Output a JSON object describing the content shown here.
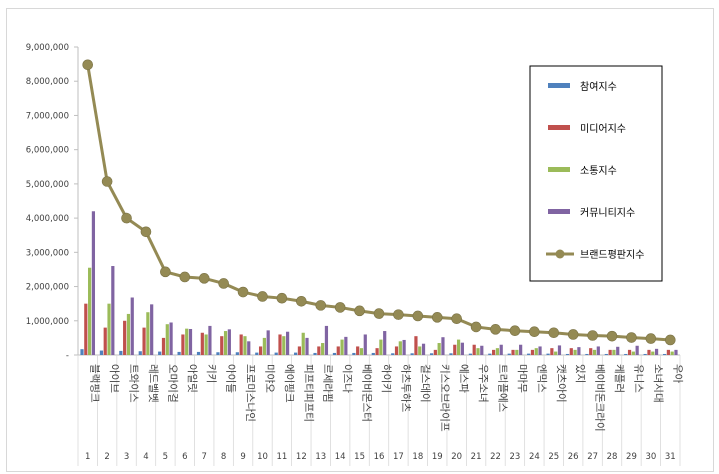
{
  "chart_data": {
    "type": "bar",
    "categories": [
      "블랙핑크",
      "아이브",
      "트와이스",
      "레드벨벳",
      "오마이걸",
      "아일릿",
      "키키",
      "아이들",
      "프로미스나인",
      "미야오",
      "에이핑크",
      "피프티피프티",
      "르세라핌",
      "이즈나",
      "베이비몬스터",
      "하이키",
      "하츠투하츠",
      "걸스데이",
      "키스오브라이프",
      "에스파",
      "우주소녀",
      "트리플에스",
      "마마무",
      "엔믹스",
      "캣츠아이",
      "있지",
      "베이비돈크라이",
      "케플러",
      "유니스",
      "소녀시대",
      "우아"
    ],
    "index_labels": [
      "1",
      "2",
      "3",
      "4",
      "5",
      "6",
      "7",
      "8",
      "9",
      "10",
      "11",
      "12",
      "13",
      "14",
      "15",
      "16",
      "17",
      "18",
      "19",
      "20",
      "21",
      "22",
      "23",
      "24",
      "25",
      "26",
      "27",
      "28",
      "29",
      "30",
      "31"
    ],
    "ylim": [
      0,
      9000000
    ],
    "yticks": [
      "-",
      "1,000,000",
      "2,000,000",
      "3,000,000",
      "4,000,000",
      "5,000,000",
      "6,000,000",
      "7,000,000",
      "8,000,000",
      "9,000,000"
    ],
    "grid": false,
    "legend_position": "top-right",
    "series": [
      {
        "name": "참여지수",
        "kind": "bar",
        "color": "#4f81bd",
        "values": [
          170000,
          130000,
          120000,
          110000,
          100000,
          90000,
          90000,
          80000,
          80000,
          70000,
          70000,
          70000,
          60000,
          60000,
          60000,
          60000,
          50000,
          50000,
          50000,
          50000,
          40000,
          40000,
          40000,
          40000,
          40000,
          30000,
          30000,
          30000,
          30000,
          30000,
          30000
        ]
      },
      {
        "name": "미디어지수",
        "kind": "bar",
        "color": "#c0504d",
        "values": [
          1500000,
          800000,
          1000000,
          800000,
          500000,
          600000,
          650000,
          550000,
          600000,
          250000,
          600000,
          250000,
          250000,
          250000,
          250000,
          200000,
          250000,
          550000,
          150000,
          300000,
          300000,
          150000,
          150000,
          150000,
          200000,
          200000,
          200000,
          150000,
          150000,
          150000,
          150000
        ]
      },
      {
        "name": "소통지수",
        "kind": "bar",
        "color": "#9bbb59",
        "values": [
          2550000,
          1500000,
          1200000,
          1250000,
          900000,
          770000,
          600000,
          700000,
          550000,
          500000,
          550000,
          650000,
          350000,
          450000,
          200000,
          450000,
          400000,
          250000,
          350000,
          450000,
          200000,
          200000,
          150000,
          200000,
          100000,
          150000,
          150000,
          150000,
          100000,
          100000,
          100000
        ]
      },
      {
        "name": "커뮤니티지수",
        "kind": "bar",
        "color": "#8064a2",
        "values": [
          4200000,
          2600000,
          1680000,
          1480000,
          950000,
          760000,
          850000,
          750000,
          400000,
          720000,
          680000,
          500000,
          850000,
          530000,
          600000,
          700000,
          440000,
          330000,
          520000,
          360000,
          270000,
          300000,
          300000,
          250000,
          280000,
          230000,
          250000,
          240000,
          270000,
          180000,
          150000
        ]
      },
      {
        "name": "브랜드평판지수",
        "kind": "line",
        "color": "#948a54",
        "values": [
          8480000,
          5070000,
          4000000,
          3600000,
          2430000,
          2280000,
          2240000,
          2090000,
          1840000,
          1710000,
          1660000,
          1570000,
          1450000,
          1390000,
          1290000,
          1210000,
          1180000,
          1140000,
          1100000,
          1060000,
          820000,
          750000,
          710000,
          680000,
          650000,
          600000,
          570000,
          550000,
          510000,
          480000,
          440000
        ]
      }
    ]
  }
}
